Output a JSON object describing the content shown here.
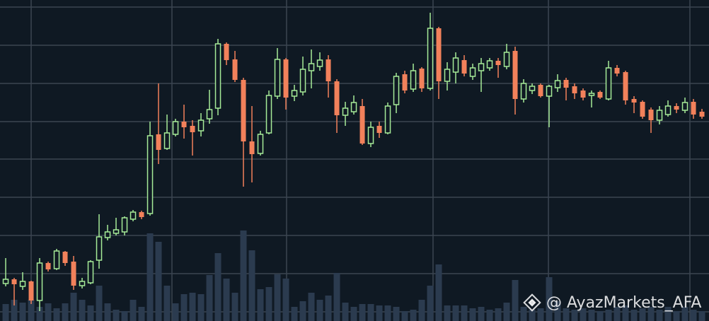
{
  "chart_data": {
    "type": "candlestick",
    "watermark": "@ AyazMarkets_AFA",
    "background": "#0f1923",
    "up_color": "#a6eb98",
    "down_color": "#f2815b",
    "volume_color": "#2b3b4f",
    "grid_color": "#3b4551",
    "xlim": [
      -0.67,
      82.83
    ],
    "ylim": [
      0,
      454
    ],
    "volume_ylim": [
      0,
      454
    ],
    "xgrid": [
      3,
      19.58,
      33.08,
      50.33,
      63.92,
      80.58
    ],
    "ygrid": [
      13,
      67,
      121,
      175,
      229,
      282,
      336,
      390,
      444
    ],
    "open": [
      53,
      59,
      49,
      56,
      29,
      82,
      74,
      98,
      84,
      50,
      54,
      86,
      118,
      124,
      126,
      144,
      154,
      152,
      264,
      244,
      264,
      282,
      276,
      269,
      286,
      301,
      392,
      370,
      341,
      254,
      237,
      266,
      318,
      370,
      318,
      324,
      354,
      360,
      370,
      339,
      291,
      296,
      304,
      251,
      276,
      266,
      306,
      349,
      328,
      357,
      329,
      414,
      339,
      352,
      369,
      346,
      354,
      358,
      368,
      360,
      382,
      314,
      326,
      334,
      318,
      330,
      341,
      332,
      326,
      319,
      324,
      314,
      358,
      352,
      314,
      310,
      299,
      284,
      292,
      304,
      298,
      310,
      296
    ],
    "high": [
      89,
      61,
      69,
      57,
      89,
      84,
      102,
      99,
      92,
      61,
      86,
      151,
      136,
      146,
      148,
      157,
      156,
      282,
      336,
      292,
      286,
      306,
      284,
      294,
      327,
      399,
      394,
      382,
      344,
      304,
      269,
      326,
      386,
      372,
      334,
      374,
      384,
      380,
      376,
      342,
      310,
      319,
      314,
      282,
      282,
      309,
      351,
      354,
      364,
      359,
      436,
      416,
      366,
      380,
      376,
      364,
      372,
      372,
      372,
      392,
      388,
      342,
      336,
      336,
      334,
      349,
      344,
      336,
      329,
      326,
      326,
      368,
      362,
      354,
      318,
      312,
      302,
      304,
      312,
      308,
      316,
      314,
      300
    ],
    "low": [
      49,
      22,
      44,
      24,
      14,
      70,
      72,
      78,
      44,
      46,
      52,
      74,
      114,
      121,
      121,
      141,
      144,
      149,
      222,
      242,
      261,
      258,
      234,
      261,
      279,
      291,
      362,
      338,
      190,
      196,
      234,
      264,
      314,
      299,
      311,
      319,
      329,
      354,
      316,
      266,
      276,
      292,
      249,
      246,
      259,
      264,
      294,
      322,
      324,
      324,
      326,
      314,
      326,
      336,
      346,
      341,
      324,
      354,
      344,
      356,
      292,
      309,
      321,
      316,
      274,
      324,
      312,
      314,
      312,
      302,
      314,
      312,
      346,
      306,
      294,
      286,
      266,
      278,
      289,
      294,
      294,
      286,
      286
    ],
    "close": [
      59,
      52,
      56,
      29,
      82,
      73,
      99,
      82,
      50,
      56,
      84,
      119,
      126,
      129,
      146,
      154,
      147,
      262,
      242,
      266,
      282,
      274,
      267,
      284,
      299,
      392,
      369,
      341,
      254,
      236,
      264,
      319,
      370,
      316,
      326,
      356,
      364,
      369,
      339,
      291,
      301,
      309,
      251,
      274,
      266,
      304,
      346,
      326,
      354,
      329,
      414,
      339,
      356,
      372,
      350,
      358,
      364,
      368,
      362,
      380,
      314,
      336,
      332,
      318,
      332,
      340,
      330,
      322,
      316,
      322,
      316,
      358,
      350,
      312,
      309,
      289,
      284,
      298,
      304,
      299,
      309,
      292,
      289
    ],
    "volume": [
      24,
      30,
      26,
      30,
      20,
      25,
      18,
      25,
      40,
      30,
      22,
      50,
      25,
      16,
      14,
      30,
      20,
      124,
      112,
      50,
      25,
      38,
      40,
      38,
      65,
      96,
      60,
      40,
      128,
      100,
      45,
      48,
      66,
      60,
      20,
      28,
      40,
      30,
      36,
      68,
      26,
      20,
      24,
      24,
      22,
      22,
      20,
      14,
      16,
      30,
      50,
      80,
      22,
      22,
      22,
      18,
      20,
      16,
      18,
      26,
      58,
      20,
      16,
      18,
      62,
      28,
      18,
      16,
      18,
      16,
      14,
      16,
      20,
      22,
      16,
      18,
      20,
      16,
      20,
      14,
      20,
      16,
      14
    ]
  }
}
